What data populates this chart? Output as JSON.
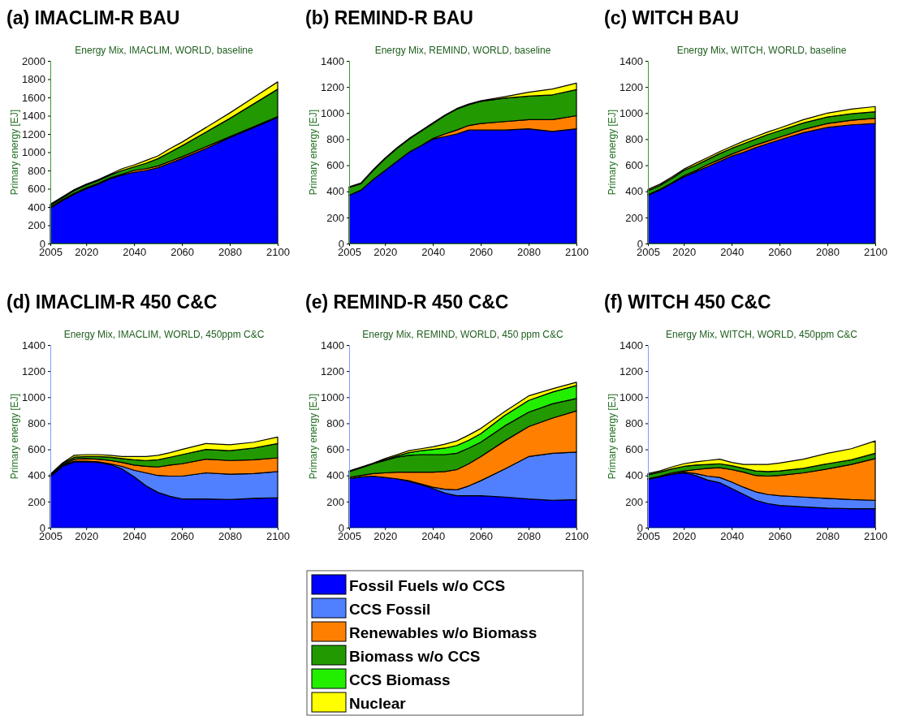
{
  "chart_data": [
    {
      "type": "area",
      "stacked": true,
      "title": "(a) IMACLIM-R BAU",
      "subtitle": "Energy Mix, IMACLIM, WORLD, baseline",
      "ylabel": "Primary energy [EJ]",
      "x": [
        2005,
        2010,
        2015,
        2020,
        2025,
        2030,
        2035,
        2040,
        2045,
        2050,
        2055,
        2060,
        2070,
        2080,
        2090,
        2100
      ],
      "xlim": [
        2005,
        2100
      ],
      "xticks": [
        2005,
        2020,
        2040,
        2060,
        2080,
        2100
      ],
      "ylim": [
        0,
        2000
      ],
      "yticks": [
        0,
        200,
        400,
        600,
        800,
        1000,
        1200,
        1400,
        1600,
        1800,
        2000
      ],
      "series": [
        {
          "color": "#0000ff",
          "values": [
            390,
            470,
            540,
            600,
            650,
            710,
            750,
            780,
            800,
            830,
            880,
            930,
            1040,
            1160,
            1270,
            1380
          ]
        },
        {
          "color": "#ff8000",
          "values": [
            10,
            10,
            10,
            10,
            10,
            10,
            10,
            20,
            20,
            20,
            20,
            20,
            20,
            10,
            10,
            10
          ]
        },
        {
          "color": "#229900",
          "values": [
            20,
            20,
            30,
            30,
            30,
            30,
            40,
            40,
            60,
            80,
            100,
            120,
            160,
            200,
            250,
            300
          ]
        },
        {
          "color": "#ffff00",
          "values": [
            10,
            10,
            10,
            10,
            10,
            10,
            20,
            20,
            30,
            30,
            40,
            40,
            50,
            60,
            70,
            80
          ]
        }
      ]
    },
    {
      "type": "area",
      "stacked": true,
      "title": "(b) REMIND-R BAU",
      "subtitle": "Energy Mix, REMIND, WORLD, baseline",
      "ylabel": "Primary energy [EJ]",
      "x": [
        2005,
        2010,
        2015,
        2020,
        2025,
        2030,
        2035,
        2040,
        2045,
        2050,
        2055,
        2060,
        2070,
        2080,
        2090,
        2100
      ],
      "xlim": [
        2005,
        2100
      ],
      "xticks": [
        2005,
        2020,
        2040,
        2060,
        2080,
        2100
      ],
      "ylim": [
        0,
        1400
      ],
      "yticks": [
        0,
        200,
        400,
        600,
        800,
        1000,
        1200,
        1400
      ],
      "series": [
        {
          "color": "#0000ff",
          "values": [
            370,
            410,
            490,
            560,
            630,
            700,
            750,
            800,
            820,
            840,
            870,
            870,
            870,
            880,
            860,
            880
          ]
        },
        {
          "color": "#ff8000",
          "values": [
            0,
            0,
            0,
            0,
            0,
            0,
            0,
            5,
            20,
            30,
            35,
            50,
            65,
            70,
            90,
            100
          ]
        },
        {
          "color": "#229900",
          "values": [
            60,
            50,
            70,
            90,
            100,
            100,
            110,
            115,
            140,
            160,
            160,
            170,
            180,
            180,
            190,
            200
          ]
        },
        {
          "color": "#ffff00",
          "values": [
            5,
            5,
            5,
            5,
            5,
            5,
            5,
            5,
            5,
            5,
            5,
            5,
            10,
            30,
            45,
            50
          ]
        }
      ]
    },
    {
      "type": "area",
      "stacked": true,
      "title": "(c) WITCH BAU",
      "subtitle": "Energy Mix, WITCH, WORLD, baseline",
      "ylabel": "Primary energy [EJ]",
      "x": [
        2005,
        2010,
        2015,
        2020,
        2025,
        2030,
        2035,
        2040,
        2045,
        2050,
        2055,
        2060,
        2070,
        2080,
        2090,
        2100
      ],
      "xlim": [
        2005,
        2100
      ],
      "xticks": [
        2005,
        2020,
        2040,
        2060,
        2080,
        2100
      ],
      "ylim": [
        0,
        1400
      ],
      "yticks": [
        0,
        200,
        400,
        600,
        800,
        1000,
        1200,
        1400
      ],
      "series": [
        {
          "color": "#0000ff",
          "values": [
            370,
            410,
            460,
            510,
            550,
            590,
            630,
            670,
            700,
            735,
            765,
            795,
            850,
            890,
            910,
            920
          ]
        },
        {
          "color": "#ff8000",
          "values": [
            5,
            5,
            5,
            10,
            10,
            15,
            15,
            15,
            20,
            20,
            20,
            20,
            25,
            30,
            35,
            40
          ]
        },
        {
          "color": "#229900",
          "values": [
            30,
            30,
            35,
            40,
            40,
            40,
            45,
            45,
            45,
            45,
            50,
            50,
            50,
            50,
            50,
            50
          ]
        },
        {
          "color": "#ffff00",
          "values": [
            10,
            10,
            10,
            10,
            15,
            15,
            15,
            15,
            20,
            20,
            20,
            20,
            25,
            30,
            35,
            40
          ]
        }
      ]
    },
    {
      "type": "area",
      "stacked": true,
      "title": "(d) IMACLIM-R 450 C&C",
      "subtitle": "Energy Mix, IMACLIM, WORLD, 450ppm C&C",
      "ylabel": "Primary energy [EJ]",
      "x": [
        2005,
        2010,
        2015,
        2020,
        2025,
        2030,
        2035,
        2040,
        2045,
        2050,
        2055,
        2060,
        2070,
        2080,
        2090,
        2100
      ],
      "xlim": [
        2005,
        2100
      ],
      "xticks": [
        2005,
        2020,
        2040,
        2060,
        2080,
        2100
      ],
      "ylim": [
        0,
        1400
      ],
      "yticks": [
        0,
        200,
        400,
        600,
        800,
        1000,
        1200,
        1400
      ],
      "series": [
        {
          "color": "#0000ff",
          "values": [
            390,
            470,
            505,
            505,
            500,
            485,
            450,
            390,
            320,
            270,
            240,
            220,
            220,
            215,
            225,
            230
          ]
        },
        {
          "color": "#5080ff",
          "values": [
            5,
            5,
            5,
            5,
            5,
            5,
            20,
            50,
            100,
            130,
            155,
            175,
            200,
            195,
            190,
            200
          ]
        },
        {
          "color": "#ff8000",
          "values": [
            5,
            5,
            15,
            20,
            20,
            25,
            30,
            40,
            50,
            65,
            85,
            95,
            105,
            105,
            105,
            105
          ]
        },
        {
          "color": "#229900",
          "values": [
            5,
            10,
            15,
            15,
            20,
            25,
            30,
            40,
            45,
            55,
            60,
            70,
            75,
            75,
            90,
            110
          ]
        },
        {
          "color": "#ffff00",
          "values": [
            5,
            5,
            15,
            15,
            15,
            15,
            15,
            25,
            30,
            35,
            35,
            40,
            45,
            45,
            45,
            50
          ]
        }
      ]
    },
    {
      "type": "area",
      "stacked": true,
      "title": "(e) REMIND-R 450 C&C",
      "subtitle": "Energy Mix, REMIND, WORLD, 450 ppm C&C",
      "ylabel": "Primary energy [EJ]",
      "x": [
        2005,
        2010,
        2015,
        2020,
        2025,
        2030,
        2035,
        2040,
        2045,
        2050,
        2055,
        2060,
        2070,
        2080,
        2090,
        2100
      ],
      "xlim": [
        2005,
        2100
      ],
      "xticks": [
        2005,
        2020,
        2040,
        2060,
        2080,
        2100
      ],
      "ylim": [
        0,
        1400
      ],
      "yticks": [
        0,
        200,
        400,
        600,
        800,
        1000,
        1200,
        1400
      ],
      "legend": "bottom",
      "series": [
        {
          "name": "Fossil Fuels w/o CCS",
          "color": "#0000ff",
          "values": [
            375,
            390,
            395,
            385,
            375,
            355,
            330,
            300,
            265,
            245,
            245,
            245,
            235,
            220,
            210,
            215
          ]
        },
        {
          "name": "CCS Fossil",
          "color": "#5080ff",
          "values": [
            0,
            0,
            0,
            0,
            0,
            5,
            5,
            10,
            30,
            45,
            75,
            115,
            215,
            325,
            360,
            365
          ]
        },
        {
          "name": "Renewables w/o Biomass",
          "color": "#ff8000",
          "values": [
            10,
            10,
            20,
            35,
            50,
            65,
            90,
            115,
            135,
            155,
            170,
            185,
            215,
            230,
            270,
            315
          ]
        },
        {
          "name": "Biomass w/o CCS",
          "color": "#229900",
          "values": [
            45,
            60,
            75,
            95,
            115,
            130,
            135,
            135,
            130,
            125,
            120,
            110,
            115,
            110,
            110,
            95
          ]
        },
        {
          "name": "CCS Biomass",
          "color": "#22ee00",
          "values": [
            0,
            0,
            0,
            5,
            10,
            20,
            30,
            40,
            50,
            60,
            60,
            65,
            80,
            90,
            90,
            100
          ]
        },
        {
          "name": "Nuclear",
          "color": "#ffff00",
          "values": [
            5,
            5,
            5,
            10,
            10,
            15,
            15,
            20,
            30,
            35,
            40,
            40,
            30,
            35,
            25,
            25
          ]
        }
      ]
    },
    {
      "type": "area",
      "stacked": true,
      "title": "(f) WITCH 450 C&C",
      "subtitle": "Energy Mix, WITCH, WORLD, 450ppm C&C",
      "ylabel": "Primary energy [EJ]",
      "x": [
        2005,
        2010,
        2015,
        2020,
        2025,
        2030,
        2035,
        2040,
        2045,
        2050,
        2055,
        2060,
        2070,
        2080,
        2090,
        2100
      ],
      "xlim": [
        2005,
        2100
      ],
      "xticks": [
        2005,
        2020,
        2040,
        2060,
        2080,
        2100
      ],
      "ylim": [
        0,
        1400
      ],
      "yticks": [
        0,
        200,
        400,
        600,
        800,
        1000,
        1200,
        1400
      ],
      "series": [
        {
          "color": "#0000ff",
          "values": [
            370,
            390,
            410,
            420,
            400,
            365,
            345,
            300,
            255,
            210,
            185,
            170,
            160,
            150,
            145,
            145
          ]
        },
        {
          "color": "#5080ff",
          "values": [
            0,
            0,
            0,
            5,
            15,
            30,
            40,
            50,
            55,
            65,
            70,
            75,
            75,
            75,
            70,
            65
          ]
        },
        {
          "color": "#ff8000",
          "values": [
            5,
            5,
            10,
            10,
            30,
            60,
            75,
            95,
            115,
            125,
            140,
            155,
            185,
            225,
            270,
            320
          ]
        },
        {
          "color": "#229900",
          "values": [
            30,
            30,
            30,
            35,
            35,
            30,
            30,
            30,
            30,
            35,
            35,
            35,
            35,
            40,
            35,
            40
          ]
        },
        {
          "color": "#ffff00",
          "values": [
            10,
            10,
            15,
            20,
            25,
            30,
            35,
            25,
            30,
            50,
            55,
            60,
            70,
            80,
            85,
            95
          ]
        }
      ]
    }
  ]
}
